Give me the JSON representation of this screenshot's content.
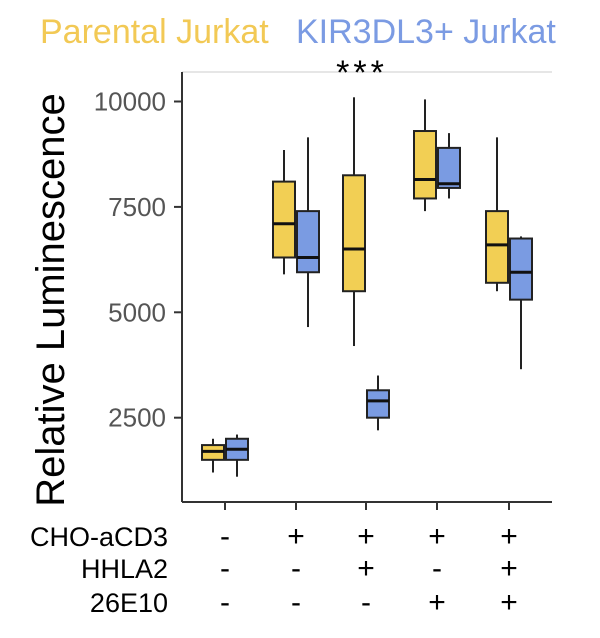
{
  "legend": {
    "parental": "Parental Jurkat",
    "kir": "KIR3DL3+ Jurkat"
  },
  "colors": {
    "parental": "#f2cf54",
    "kir": "#7a9be2",
    "parental_text": "#f2c955",
    "kir_text": "#7b9be3"
  },
  "chart_data": {
    "type": "boxplot",
    "ylabel": "Relative Luminescence",
    "ylim": [
      500,
      10700
    ],
    "yticks": [
      2500,
      5000,
      7500,
      10000
    ],
    "ytick_labels": [
      "2500",
      "5000",
      "7500",
      "10000"
    ],
    "significance": {
      "label": "***",
      "group": 3
    },
    "condition_rows": [
      {
        "label": "CHO-aCD3",
        "marks": [
          "-",
          "+",
          "+",
          "+",
          "+"
        ]
      },
      {
        "label": "HHLA2",
        "marks": [
          "-",
          "-",
          "+",
          "-",
          "+"
        ]
      },
      {
        "label": "26E10",
        "marks": [
          "-",
          "-",
          "-",
          "+",
          "+"
        ]
      }
    ],
    "series": [
      {
        "name": "Parental Jurkat",
        "boxes": [
          {
            "min": 1200,
            "q1": 1500,
            "median": 1700,
            "q3": 1850,
            "max": 2000
          },
          {
            "min": 5900,
            "q1": 6300,
            "median": 7100,
            "q3": 8100,
            "max": 8850
          },
          {
            "min": 4200,
            "q1": 5500,
            "median": 6500,
            "q3": 8250,
            "max": 10100
          },
          {
            "min": 7400,
            "q1": 7700,
            "median": 8150,
            "q3": 9300,
            "max": 10050
          },
          {
            "min": 5500,
            "q1": 5700,
            "median": 6600,
            "q3": 7400,
            "max": 9150
          }
        ]
      },
      {
        "name": "KIR3DL3+ Jurkat",
        "boxes": [
          {
            "min": 1100,
            "q1": 1500,
            "median": 1750,
            "q3": 2000,
            "max": 2100
          },
          {
            "min": 4650,
            "q1": 5950,
            "median": 6300,
            "q3": 7400,
            "max": 9150
          },
          {
            "min": 2200,
            "q1": 2500,
            "median": 2900,
            "q3": 3150,
            "max": 3500
          },
          {
            "min": 7700,
            "q1": 7950,
            "median": 8050,
            "q3": 8900,
            "max": 9250
          },
          {
            "min": 3650,
            "q1": 5300,
            "median": 5950,
            "q3": 6750,
            "max": 6800
          }
        ]
      }
    ]
  }
}
